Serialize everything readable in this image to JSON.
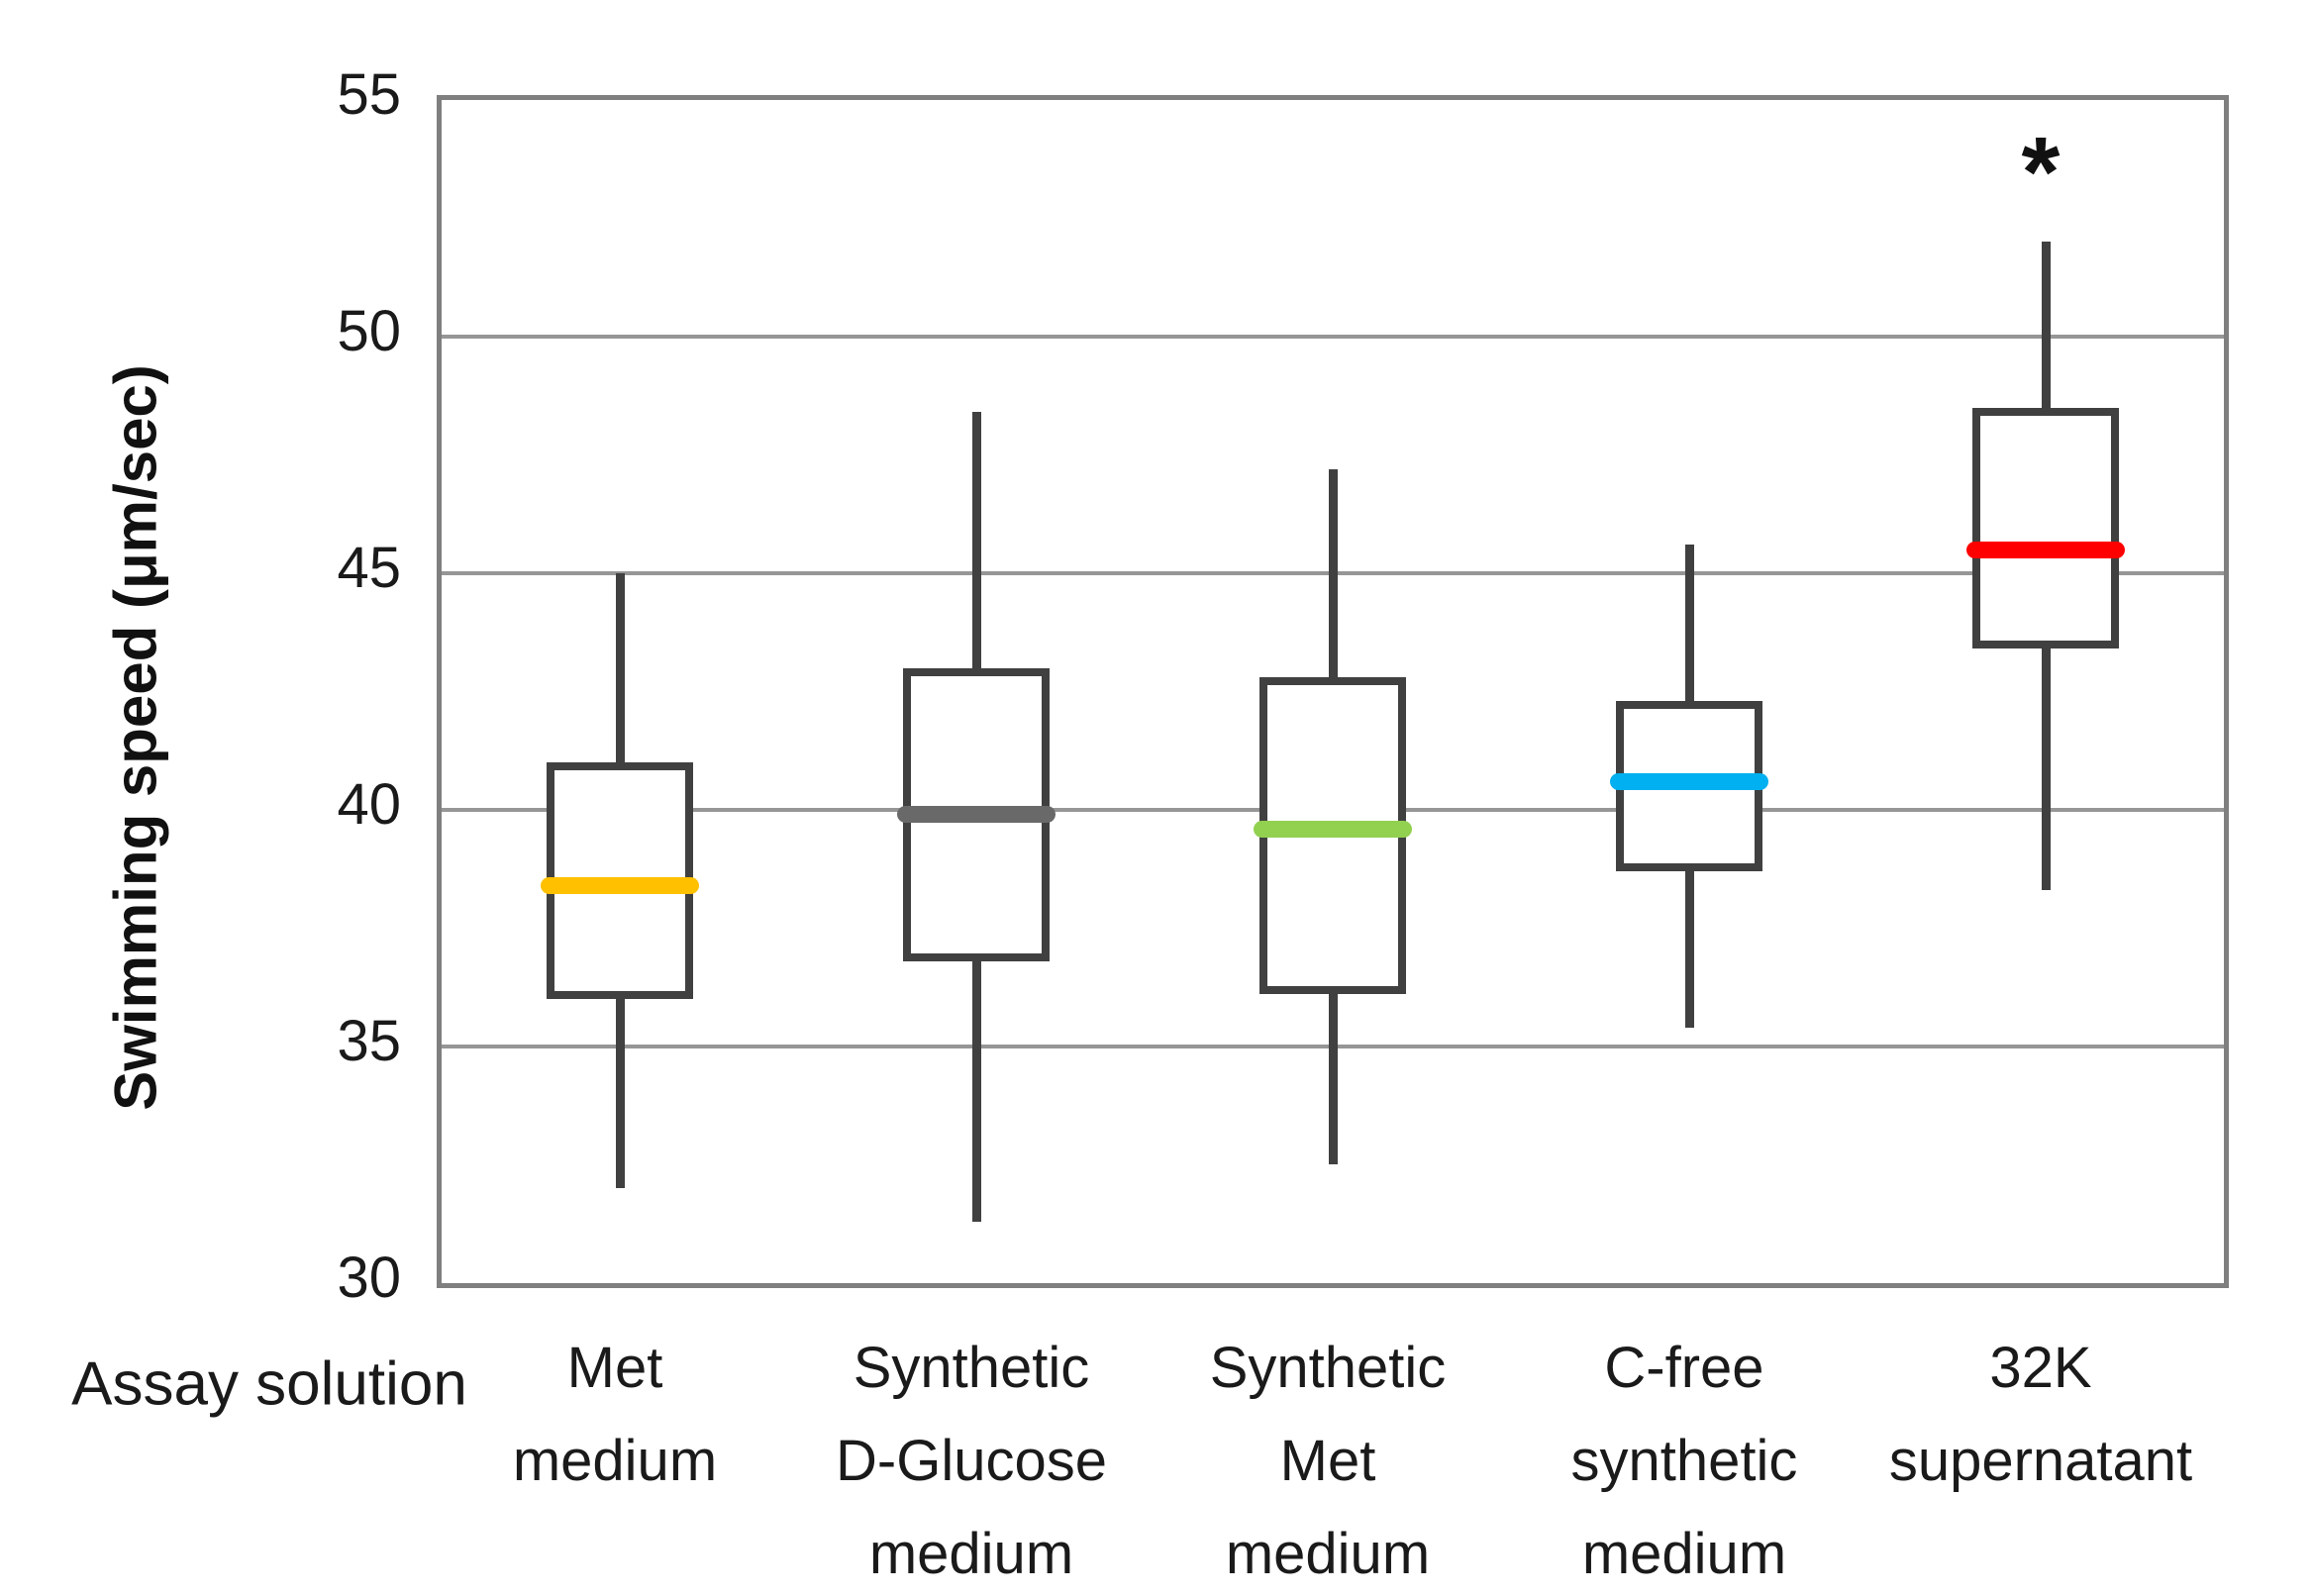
{
  "chart_data": {
    "type": "box",
    "title": "",
    "ylabel": "Swimming speed (μm/sec)",
    "xlabel": "Assay solution",
    "ylim": [
      30,
      55
    ],
    "yticks": [
      55,
      50,
      45,
      40,
      35,
      30
    ],
    "grid": true,
    "legend": "none",
    "categories": [
      {
        "label_lines": [
          "Met",
          "medium"
        ]
      },
      {
        "label_lines": [
          "Synthetic",
          "D-Glucose",
          "medium"
        ]
      },
      {
        "label_lines": [
          "Synthetic",
          "Met",
          "medium"
        ]
      },
      {
        "label_lines": [
          "C-free",
          "synthetic",
          "medium"
        ]
      },
      {
        "label_lines": [
          "32K",
          "supernatant"
        ]
      }
    ],
    "series": [
      {
        "name": "Met medium",
        "whisker_low": 32.0,
        "q1": 36.0,
        "median": 38.4,
        "q3": 41.0,
        "whisker_high": 45.0,
        "median_color": "#FFC000",
        "annotation": ""
      },
      {
        "name": "Synthetic D-Glucose medium",
        "whisker_low": 31.3,
        "q1": 36.8,
        "median": 39.9,
        "q3": 43.0,
        "whisker_high": 48.4,
        "median_color": "#696969",
        "annotation": ""
      },
      {
        "name": "Synthetic Met medium",
        "whisker_low": 32.5,
        "q1": 36.1,
        "median": 39.6,
        "q3": 42.8,
        "whisker_high": 47.2,
        "median_color": "#92D050",
        "annotation": ""
      },
      {
        "name": "C-free synthetic medium",
        "whisker_low": 35.4,
        "q1": 38.7,
        "median": 40.6,
        "q3": 42.3,
        "whisker_high": 45.6,
        "median_color": "#00B0F0",
        "annotation": ""
      },
      {
        "name": "32K supernatant",
        "whisker_low": 38.3,
        "q1": 43.4,
        "median": 45.5,
        "q3": 48.5,
        "whisker_high": 52.0,
        "median_color": "#FF0000",
        "annotation": "*"
      }
    ],
    "colors": {
      "box_border": "#404040",
      "whisker": "#404040",
      "gridline": "#969696",
      "plot_border": "#7f7f7f",
      "text": "#1a1a1a"
    }
  }
}
